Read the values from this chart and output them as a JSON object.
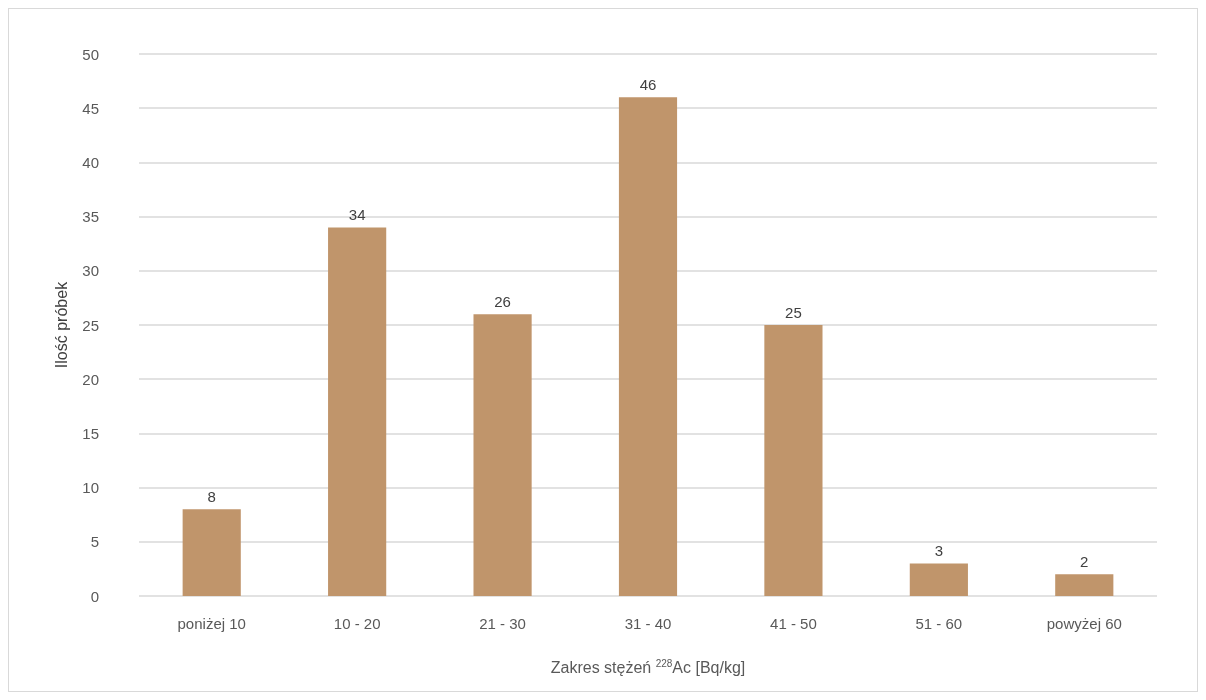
{
  "chart_data": {
    "type": "bar",
    "categories": [
      "poniżej 10",
      "10 - 20",
      "21 - 30",
      "31 - 40",
      "41 - 50",
      "51 - 60",
      "powyżej 60"
    ],
    "values": [
      8,
      34,
      26,
      46,
      25,
      3,
      2
    ],
    "color": "#c0956b",
    "xlabel": "Zakres stężeń $^{228}$Ac [Bq/kg]",
    "ylabel": "Ilość próbek",
    "ylim": [
      0,
      50
    ],
    "yticks": [
      0,
      5,
      10,
      15,
      20,
      25,
      30,
      35,
      40,
      45,
      50
    ],
    "grid": "y",
    "data_labels": true
  }
}
